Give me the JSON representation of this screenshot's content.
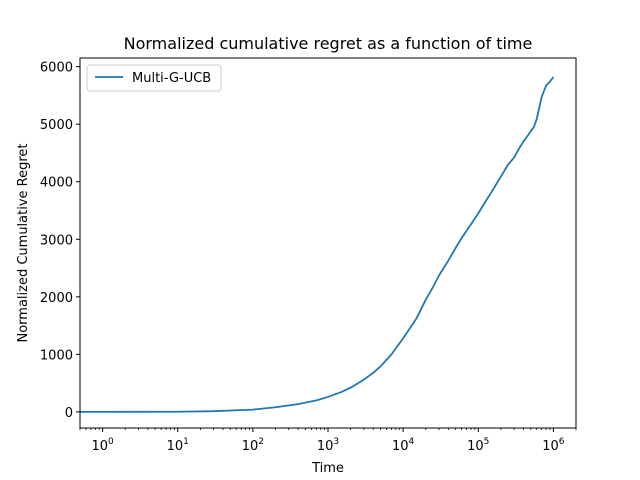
{
  "chart_data": {
    "type": "line",
    "title": "Normalized cumulative regret as a function of time",
    "xlabel": "Time",
    "ylabel": "Normalized Cumulative Regret",
    "xscale": "log",
    "xlim": [
      0.5,
      2000000
    ],
    "ylim": [
      -280,
      6150
    ],
    "xticks": [
      {
        "value": 1,
        "label": "10",
        "exp": "0"
      },
      {
        "value": 10,
        "label": "10",
        "exp": "1"
      },
      {
        "value": 100,
        "label": "10",
        "exp": "2"
      },
      {
        "value": 1000,
        "label": "10",
        "exp": "3"
      },
      {
        "value": 10000,
        "label": "10",
        "exp": "4"
      },
      {
        "value": 100000,
        "label": "10",
        "exp": "5"
      },
      {
        "value": 1000000,
        "label": "10",
        "exp": "6"
      }
    ],
    "yticks": [
      {
        "value": 0,
        "label": "0"
      },
      {
        "value": 1000,
        "label": "1000"
      },
      {
        "value": 2000,
        "label": "2000"
      },
      {
        "value": 3000,
        "label": "3000"
      },
      {
        "value": 4000,
        "label": "4000"
      },
      {
        "value": 5000,
        "label": "5000"
      },
      {
        "value": 6000,
        "label": "6000"
      }
    ],
    "legend_position": "top-left",
    "grid": false,
    "series": [
      {
        "name": "Multi-G-UCB",
        "color": "#1f77b4",
        "x": [
          0.5,
          1,
          10,
          30,
          100,
          200,
          400,
          700,
          1000,
          1500,
          2000,
          3000,
          4000,
          5000,
          7000,
          10000,
          13000,
          15000,
          20000,
          25000,
          30000,
          40000,
          50000,
          60000,
          70000,
          80000,
          100000,
          120000,
          150000,
          200000,
          250000,
          300000,
          350000,
          400000,
          450000,
          500000,
          550000,
          600000,
          700000,
          800000,
          900000,
          1000000
        ],
        "y": [
          0,
          0,
          3,
          12,
          40,
          80,
          135,
          200,
          260,
          345,
          420,
          560,
          680,
          790,
          1000,
          1280,
          1500,
          1620,
          1950,
          2170,
          2370,
          2630,
          2850,
          3020,
          3150,
          3260,
          3450,
          3620,
          3820,
          4090,
          4300,
          4420,
          4580,
          4700,
          4790,
          4880,
          4950,
          5090,
          5480,
          5670,
          5740,
          5820
        ]
      }
    ]
  }
}
